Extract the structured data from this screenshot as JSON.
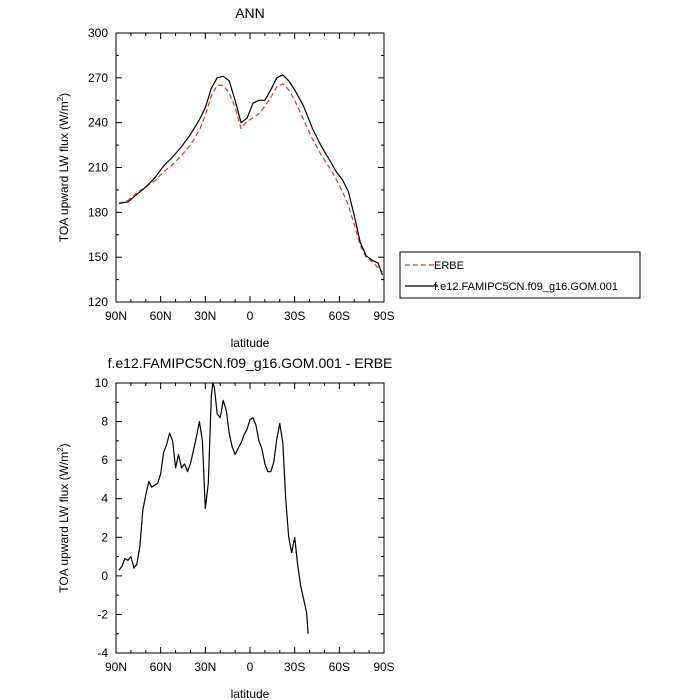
{
  "chart_data": [
    {
      "type": "line",
      "title": "ANN",
      "xlabel": "latitude",
      "ylabel": "TOA upward LW flux (W/m²)",
      "ylabel_main": "TOA upward LW flux (W/m",
      "ylabel_sup": "2",
      "ylabel_tail": ")",
      "xlim": [
        90,
        -90
      ],
      "ylim": [
        120,
        300
      ],
      "x_ticks": [
        {
          "value": 90,
          "label": "90N"
        },
        {
          "value": 60,
          "label": "60N"
        },
        {
          "value": 30,
          "label": "30N"
        },
        {
          "value": 0,
          "label": "0"
        },
        {
          "value": -30,
          "label": "30S"
        },
        {
          "value": -60,
          "label": "60S"
        },
        {
          "value": -90,
          "label": "90S"
        }
      ],
      "y_ticks": [
        120,
        150,
        180,
        210,
        240,
        270,
        300
      ],
      "legend_position": "outside-right",
      "series": [
        {
          "name": "ERBE",
          "color": "#e8322c",
          "dash": "dashed",
          "points": [
            [
              88,
              186
            ],
            [
              82,
              188
            ],
            [
              76,
              193
            ],
            [
              70,
              197
            ],
            [
              64,
              201
            ],
            [
              58,
              207
            ],
            [
              52,
              212
            ],
            [
              46,
              218
            ],
            [
              40,
              225
            ],
            [
              34,
              235
            ],
            [
              30,
              245
            ],
            [
              26,
              258
            ],
            [
              22,
              265
            ],
            [
              18,
              265
            ],
            [
              14,
              260
            ],
            [
              10,
              250
            ],
            [
              6,
              236
            ],
            [
              2,
              241
            ],
            [
              -2,
              243
            ],
            [
              -6,
              246
            ],
            [
              -10,
              251
            ],
            [
              -14,
              257
            ],
            [
              -18,
              264
            ],
            [
              -22,
              266
            ],
            [
              -26,
              262
            ],
            [
              -30,
              255
            ],
            [
              -36,
              242
            ],
            [
              -42,
              229
            ],
            [
              -48,
              218
            ],
            [
              -54,
              209
            ],
            [
              -58,
              202
            ],
            [
              -62,
              194
            ],
            [
              -66,
              185
            ],
            [
              -70,
              172
            ],
            [
              -74,
              158
            ],
            [
              -78,
              150
            ],
            [
              -82,
              147
            ],
            [
              -86,
              143
            ],
            [
              -89,
              140
            ]
          ]
        },
        {
          "name": "f.e12.FAMIPC5CN.f09_g16.GOM.001",
          "color": "#000000",
          "dash": "solid",
          "points": [
            [
              88,
              186
            ],
            [
              82,
              187
            ],
            [
              76,
              192
            ],
            [
              70,
              197
            ],
            [
              64,
              203
            ],
            [
              58,
              211
            ],
            [
              52,
              217
            ],
            [
              46,
              224
            ],
            [
              40,
              232
            ],
            [
              34,
              242
            ],
            [
              30,
              250
            ],
            [
              26,
              263
            ],
            [
              22,
              270
            ],
            [
              18,
              271
            ],
            [
              14,
              268
            ],
            [
              10,
              255
            ],
            [
              6,
              240
            ],
            [
              2,
              243
            ],
            [
              -2,
              253
            ],
            [
              -6,
              255
            ],
            [
              -10,
              255
            ],
            [
              -14,
              262
            ],
            [
              -18,
              270
            ],
            [
              -22,
              272
            ],
            [
              -26,
              268
            ],
            [
              -30,
              262
            ],
            [
              -36,
              251
            ],
            [
              -42,
              236
            ],
            [
              -48,
              224
            ],
            [
              -54,
              214
            ],
            [
              -58,
              207
            ],
            [
              -62,
              202
            ],
            [
              -66,
              194
            ],
            [
              -70,
              178
            ],
            [
              -74,
              160
            ],
            [
              -78,
              151
            ],
            [
              -82,
              148
            ],
            [
              -86,
              146
            ],
            [
              -89,
              138
            ]
          ]
        }
      ]
    },
    {
      "type": "line",
      "title": "f.e12.FAMIPC5CN.f09_g16.GOM.001 - ERBE",
      "xlabel": "latitude",
      "ylabel": "TOA upward LW flux (W/m²)",
      "ylabel_main": "TOA upward LW flux (W/m",
      "ylabel_sup": "2",
      "ylabel_tail": ")",
      "xlim": [
        90,
        -90
      ],
      "ylim": [
        -4,
        10
      ],
      "x_ticks": [
        {
          "value": 90,
          "label": "90N"
        },
        {
          "value": 60,
          "label": "60N"
        },
        {
          "value": 30,
          "label": "30N"
        },
        {
          "value": 0,
          "label": "0"
        },
        {
          "value": -30,
          "label": "30S"
        },
        {
          "value": -60,
          "label": "60S"
        },
        {
          "value": -90,
          "label": "90S"
        }
      ],
      "y_ticks": [
        -4,
        -2,
        0,
        2,
        4,
        6,
        8,
        10
      ],
      "series": [
        {
          "color": "#000000",
          "dash": "solid",
          "points": [
            [
              88,
              0.3
            ],
            [
              86,
              0.5
            ],
            [
              84,
              0.9
            ],
            [
              82,
              0.8
            ],
            [
              80,
              1.0
            ],
            [
              78,
              0.4
            ],
            [
              76,
              0.6
            ],
            [
              74,
              1.5
            ],
            [
              72,
              3.4
            ],
            [
              70,
              4.2
            ],
            [
              68,
              4.9
            ],
            [
              66,
              4.6
            ],
            [
              64,
              4.7
            ],
            [
              62,
              4.8
            ],
            [
              60,
              5.3
            ],
            [
              58,
              6.4
            ],
            [
              56,
              6.8
            ],
            [
              54,
              7.4
            ],
            [
              52,
              7.0
            ],
            [
              50,
              5.6
            ],
            [
              48,
              6.3
            ],
            [
              46,
              5.6
            ],
            [
              44,
              5.8
            ],
            [
              42,
              5.4
            ],
            [
              40,
              5.8
            ],
            [
              38,
              6.5
            ],
            [
              36,
              7.2
            ],
            [
              34,
              8.0
            ],
            [
              32,
              7.0
            ],
            [
              30,
              3.5
            ],
            [
              28,
              4.8
            ],
            [
              26,
              9.3
            ],
            [
              25,
              10.0
            ],
            [
              24,
              9.8
            ],
            [
              22,
              8.4
            ],
            [
              20,
              8.2
            ],
            [
              18,
              9.1
            ],
            [
              16,
              8.6
            ],
            [
              14,
              7.4
            ],
            [
              12,
              6.7
            ],
            [
              10,
              6.3
            ],
            [
              8,
              6.6
            ],
            [
              6,
              6.9
            ],
            [
              4,
              7.3
            ],
            [
              2,
              7.6
            ],
            [
              0,
              8.1
            ],
            [
              -2,
              8.2
            ],
            [
              -4,
              7.8
            ],
            [
              -6,
              7.0
            ],
            [
              -8,
              6.6
            ],
            [
              -10,
              5.8
            ],
            [
              -12,
              5.4
            ],
            [
              -14,
              5.4
            ],
            [
              -16,
              5.9
            ],
            [
              -18,
              7.1
            ],
            [
              -20,
              7.9
            ],
            [
              -22,
              6.9
            ],
            [
              -24,
              4.0
            ],
            [
              -26,
              2.0
            ],
            [
              -28,
              1.2
            ],
            [
              -30,
              2.0
            ],
            [
              -32,
              0.6
            ],
            [
              -34,
              -0.5
            ],
            [
              -36,
              -1.2
            ],
            [
              -38,
              -1.9
            ],
            [
              -39,
              -3.0
            ]
          ]
        }
      ]
    }
  ]
}
